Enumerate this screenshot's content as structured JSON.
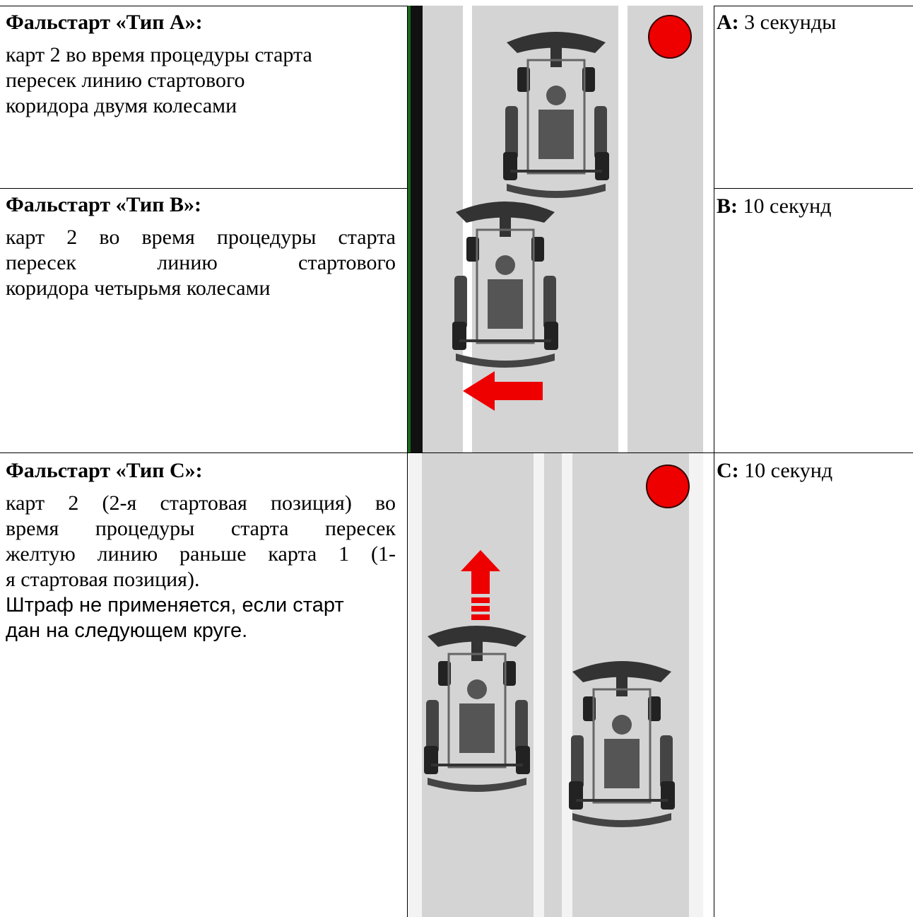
{
  "rows": [
    {
      "title": "Фальстарт «Тип А»:",
      "description": [
        "карт 2 во время процедуры старта",
        "пересек линию стартового",
        "коридора двумя колесами"
      ],
      "penalty_label": "A:",
      "penalty_text": "3 секунды"
    },
    {
      "title": "Фальстарт «Тип B»:",
      "description": [
        "карт 2 во время процедуры старта",
        "пересек линию стартового",
        "коридора четырьмя колесами"
      ],
      "penalty_label": "B:",
      "penalty_text": "10 секунд"
    },
    {
      "title": "Фальстарт «Тип C»:",
      "description": [
        "карт 2 (2-я стартовая позиция) во",
        "время процедуры старта пересек",
        "желтую линию раньше карта 1 (1-",
        "я стартовая позиция)."
      ],
      "note": [
        "Штраф не применяется, если старт",
        "дан на следующем круге."
      ],
      "penalty_label": "C:",
      "penalty_text": "10 секунд"
    }
  ]
}
